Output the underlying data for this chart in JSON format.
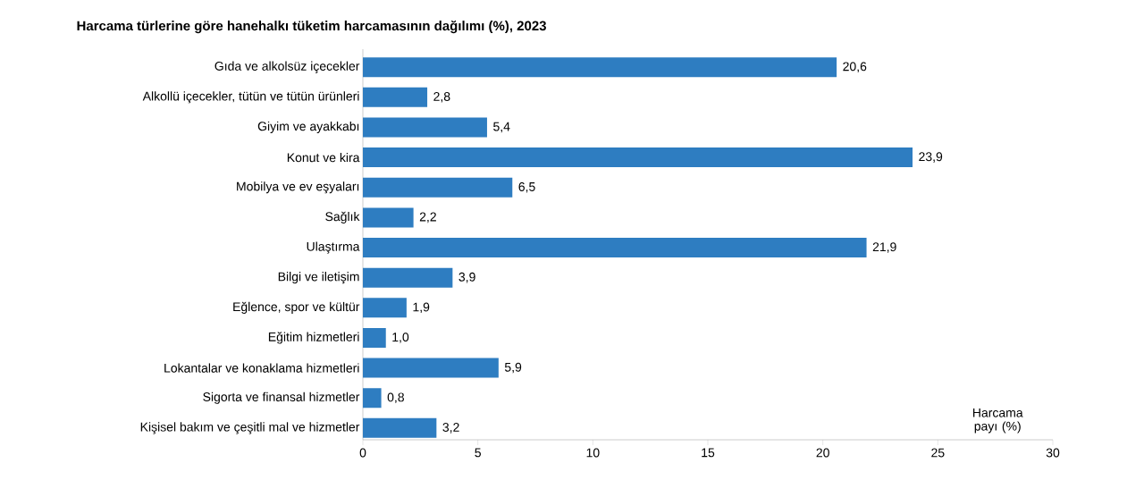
{
  "chart_data": {
    "type": "bar",
    "orientation": "horizontal",
    "title": "Harcama türlerine göre hanehalkı tüketim harcamasının dağılımı (%), 2023",
    "xlabel": "Harcama payı (%)",
    "categories": [
      "Gıda ve alkolsüz içecekler",
      "Alkollü içecekler, tütün ve tütün ürünleri",
      "Giyim ve ayakkabı",
      "Konut ve kira",
      "Mobilya ve ev eşyaları",
      "Sağlık",
      "Ulaştırma",
      "Bilgi ve iletişim",
      "Eğlence, spor ve kültür",
      "Eğitim hizmetleri",
      "Lokantalar ve konaklama hizmetleri",
      "Sigorta ve finansal hizmetler",
      "Kişisel bakım ve çeşitli mal ve hizmetler"
    ],
    "values": [
      20.6,
      2.8,
      5.4,
      23.9,
      6.5,
      2.2,
      21.9,
      3.9,
      1.9,
      1.0,
      5.9,
      0.8,
      3.2
    ],
    "value_labels": [
      "20,6",
      "2,8",
      "5,4",
      "23,9",
      "6,5",
      "2,2",
      "21,9",
      "3,9",
      "1,9",
      "1,0",
      "5,9",
      "0,8",
      "3,2"
    ],
    "color": "#2e7dc1",
    "xlim": [
      0,
      30
    ],
    "xticks": [
      0,
      5,
      10,
      15,
      20,
      25,
      30
    ]
  }
}
